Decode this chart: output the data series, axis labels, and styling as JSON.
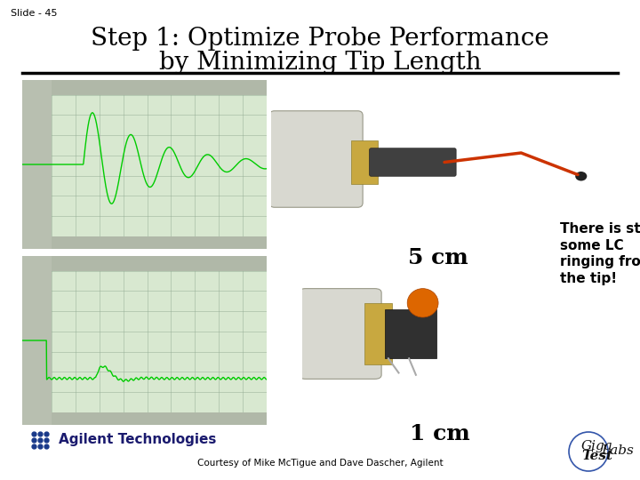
{
  "slide_number": "Slide - 45",
  "title_line1": "Step 1: Optimize Probe Performance",
  "title_line2": "by Minimizing Tip Length",
  "label_5cm": "5 cm",
  "label_1cm": "1 cm",
  "note_text": "There is still\nsome LC\nringing from\nthe tip!",
  "agilent_text": "Agilent Technologies",
  "courtesy_text": "Courtesy of Mike McTigue and Dave Dascher, Agilent",
  "bg_color": "#ffffff",
  "title_color": "#000000",
  "divider_color": "#000000",
  "slide_num_color": "#000000",
  "note_color": "#000000",
  "agilent_color": "#1a1a6e",
  "courtesy_color": "#000000",
  "title_fontsize": 20,
  "slide_num_fontsize": 8,
  "label_fontsize": 18,
  "note_fontsize": 11,
  "agilent_fontsize": 11,
  "courtesy_fontsize": 7.5,
  "gigatest_fontsize": 11
}
